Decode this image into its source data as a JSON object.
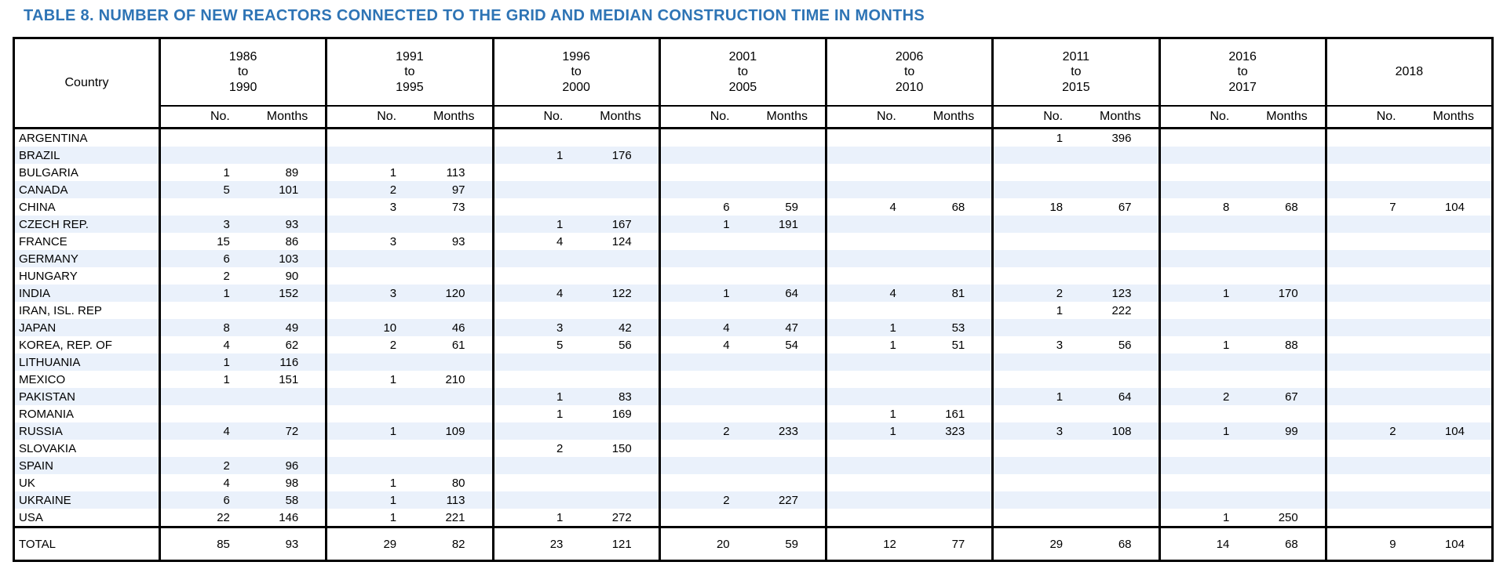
{
  "title": "TABLE 8. NUMBER OF NEW REACTORS CONNECTED TO THE GRID AND MEDIAN CONSTRUCTION TIME IN MONTHS",
  "colors": {
    "title_blue": "#2E74B5",
    "row_band": "#EAF1FB",
    "border": "#000000"
  },
  "header": {
    "country_label": "Country",
    "no_label": "No.",
    "months_label": "Months",
    "periods": [
      [
        "1986",
        "to",
        "1990"
      ],
      [
        "1991",
        "to",
        "1995"
      ],
      [
        "1996",
        "to",
        "2000"
      ],
      [
        "2001",
        "to",
        "2005"
      ],
      [
        "2006",
        "to",
        "2010"
      ],
      [
        "2011",
        "to",
        "2015"
      ],
      [
        "2016",
        "to",
        "2017"
      ],
      [
        "2018"
      ]
    ]
  },
  "rows": [
    {
      "country": "ARGENTINA",
      "cells": [
        [
          "",
          ""
        ],
        [
          "",
          ""
        ],
        [
          "",
          ""
        ],
        [
          "",
          ""
        ],
        [
          "",
          ""
        ],
        [
          "1",
          "396"
        ],
        [
          "",
          ""
        ],
        [
          "",
          ""
        ]
      ]
    },
    {
      "country": "BRAZIL",
      "cells": [
        [
          "",
          ""
        ],
        [
          "",
          ""
        ],
        [
          "1",
          "176"
        ],
        [
          "",
          ""
        ],
        [
          "",
          ""
        ],
        [
          "",
          ""
        ],
        [
          "",
          ""
        ],
        [
          "",
          ""
        ]
      ]
    },
    {
      "country": "BULGARIA",
      "cells": [
        [
          "1",
          "89"
        ],
        [
          "1",
          "113"
        ],
        [
          "",
          ""
        ],
        [
          "",
          ""
        ],
        [
          "",
          ""
        ],
        [
          "",
          ""
        ],
        [
          "",
          ""
        ],
        [
          "",
          ""
        ]
      ]
    },
    {
      "country": "CANADA",
      "cells": [
        [
          "5",
          "101"
        ],
        [
          "2",
          "97"
        ],
        [
          "",
          ""
        ],
        [
          "",
          ""
        ],
        [
          "",
          ""
        ],
        [
          "",
          ""
        ],
        [
          "",
          ""
        ],
        [
          "",
          ""
        ]
      ]
    },
    {
      "country": "CHINA",
      "cells": [
        [
          "",
          ""
        ],
        [
          "3",
          "73"
        ],
        [
          "",
          ""
        ],
        [
          "6",
          "59"
        ],
        [
          "4",
          "68"
        ],
        [
          "18",
          "67"
        ],
        [
          "8",
          "68"
        ],
        [
          "7",
          "104"
        ]
      ]
    },
    {
      "country": "CZECH REP.",
      "cells": [
        [
          "3",
          "93"
        ],
        [
          "",
          ""
        ],
        [
          "1",
          "167"
        ],
        [
          "1",
          "191"
        ],
        [
          "",
          ""
        ],
        [
          "",
          ""
        ],
        [
          "",
          ""
        ],
        [
          "",
          ""
        ]
      ]
    },
    {
      "country": "FRANCE",
      "cells": [
        [
          "15",
          "86"
        ],
        [
          "3",
          "93"
        ],
        [
          "4",
          "124"
        ],
        [
          "",
          ""
        ],
        [
          "",
          ""
        ],
        [
          "",
          ""
        ],
        [
          "",
          ""
        ],
        [
          "",
          ""
        ]
      ]
    },
    {
      "country": "GERMANY",
      "cells": [
        [
          "6",
          "103"
        ],
        [
          "",
          ""
        ],
        [
          "",
          ""
        ],
        [
          "",
          ""
        ],
        [
          "",
          ""
        ],
        [
          "",
          ""
        ],
        [
          "",
          ""
        ],
        [
          "",
          ""
        ]
      ]
    },
    {
      "country": "HUNGARY",
      "cells": [
        [
          "2",
          "90"
        ],
        [
          "",
          ""
        ],
        [
          "",
          ""
        ],
        [
          "",
          ""
        ],
        [
          "",
          ""
        ],
        [
          "",
          ""
        ],
        [
          "",
          ""
        ],
        [
          "",
          ""
        ]
      ]
    },
    {
      "country": "INDIA",
      "cells": [
        [
          "1",
          "152"
        ],
        [
          "3",
          "120"
        ],
        [
          "4",
          "122"
        ],
        [
          "1",
          "64"
        ],
        [
          "4",
          "81"
        ],
        [
          "2",
          "123"
        ],
        [
          "1",
          "170"
        ],
        [
          "",
          ""
        ]
      ]
    },
    {
      "country": "IRAN, ISL. REP",
      "cells": [
        [
          "",
          ""
        ],
        [
          "",
          ""
        ],
        [
          "",
          ""
        ],
        [
          "",
          ""
        ],
        [
          "",
          ""
        ],
        [
          "1",
          "222"
        ],
        [
          "",
          ""
        ],
        [
          "",
          ""
        ]
      ]
    },
    {
      "country": "JAPAN",
      "cells": [
        [
          "8",
          "49"
        ],
        [
          "10",
          "46"
        ],
        [
          "3",
          "42"
        ],
        [
          "4",
          "47"
        ],
        [
          "1",
          "53"
        ],
        [
          "",
          ""
        ],
        [
          "",
          ""
        ],
        [
          "",
          ""
        ]
      ]
    },
    {
      "country": "KOREA, REP. OF",
      "cells": [
        [
          "4",
          "62"
        ],
        [
          "2",
          "61"
        ],
        [
          "5",
          "56"
        ],
        [
          "4",
          "54"
        ],
        [
          "1",
          "51"
        ],
        [
          "3",
          "56"
        ],
        [
          "1",
          "88"
        ],
        [
          "",
          ""
        ]
      ]
    },
    {
      "country": "LITHUANIA",
      "cells": [
        [
          "1",
          "116"
        ],
        [
          "",
          ""
        ],
        [
          "",
          ""
        ],
        [
          "",
          ""
        ],
        [
          "",
          ""
        ],
        [
          "",
          ""
        ],
        [
          "",
          ""
        ],
        [
          "",
          ""
        ]
      ]
    },
    {
      "country": "MEXICO",
      "cells": [
        [
          "1",
          "151"
        ],
        [
          "1",
          "210"
        ],
        [
          "",
          ""
        ],
        [
          "",
          ""
        ],
        [
          "",
          ""
        ],
        [
          "",
          ""
        ],
        [
          "",
          ""
        ],
        [
          "",
          ""
        ]
      ]
    },
    {
      "country": "PAKISTAN",
      "cells": [
        [
          "",
          ""
        ],
        [
          "",
          ""
        ],
        [
          "1",
          "83"
        ],
        [
          "",
          ""
        ],
        [
          "",
          ""
        ],
        [
          "1",
          "64"
        ],
        [
          "2",
          "67"
        ],
        [
          "",
          ""
        ]
      ]
    },
    {
      "country": "ROMANIA",
      "cells": [
        [
          "",
          ""
        ],
        [
          "",
          ""
        ],
        [
          "1",
          "169"
        ],
        [
          "",
          ""
        ],
        [
          "1",
          "161"
        ],
        [
          "",
          ""
        ],
        [
          "",
          ""
        ],
        [
          "",
          ""
        ]
      ]
    },
    {
      "country": "RUSSIA",
      "cells": [
        [
          "4",
          "72"
        ],
        [
          "1",
          "109"
        ],
        [
          "",
          ""
        ],
        [
          "2",
          "233"
        ],
        [
          "1",
          "323"
        ],
        [
          "3",
          "108"
        ],
        [
          "1",
          "99"
        ],
        [
          "2",
          "104"
        ]
      ]
    },
    {
      "country": "SLOVAKIA",
      "cells": [
        [
          "",
          ""
        ],
        [
          "",
          ""
        ],
        [
          "2",
          "150"
        ],
        [
          "",
          ""
        ],
        [
          "",
          ""
        ],
        [
          "",
          ""
        ],
        [
          "",
          ""
        ],
        [
          "",
          ""
        ]
      ]
    },
    {
      "country": "SPAIN",
      "cells": [
        [
          "2",
          "96"
        ],
        [
          "",
          ""
        ],
        [
          "",
          ""
        ],
        [
          "",
          ""
        ],
        [
          "",
          ""
        ],
        [
          "",
          ""
        ],
        [
          "",
          ""
        ],
        [
          "",
          ""
        ]
      ]
    },
    {
      "country": "UK",
      "cells": [
        [
          "4",
          "98"
        ],
        [
          "1",
          "80"
        ],
        [
          "",
          ""
        ],
        [
          "",
          ""
        ],
        [
          "",
          ""
        ],
        [
          "",
          ""
        ],
        [
          "",
          ""
        ],
        [
          "",
          ""
        ]
      ]
    },
    {
      "country": "UKRAINE",
      "cells": [
        [
          "6",
          "58"
        ],
        [
          "1",
          "113"
        ],
        [
          "",
          ""
        ],
        [
          "2",
          "227"
        ],
        [
          "",
          ""
        ],
        [
          "",
          ""
        ],
        [
          "",
          ""
        ],
        [
          "",
          ""
        ]
      ]
    },
    {
      "country": "USA",
      "cells": [
        [
          "22",
          "146"
        ],
        [
          "1",
          "221"
        ],
        [
          "1",
          "272"
        ],
        [
          "",
          ""
        ],
        [
          "",
          ""
        ],
        [
          "",
          ""
        ],
        [
          "1",
          "250"
        ],
        [
          "",
          ""
        ]
      ]
    }
  ],
  "total": {
    "label": "TOTAL",
    "cells": [
      [
        "85",
        "93"
      ],
      [
        "29",
        "82"
      ],
      [
        "23",
        "121"
      ],
      [
        "20",
        "59"
      ],
      [
        "12",
        "77"
      ],
      [
        "29",
        "68"
      ],
      [
        "14",
        "68"
      ],
      [
        "9",
        "104"
      ]
    ]
  }
}
